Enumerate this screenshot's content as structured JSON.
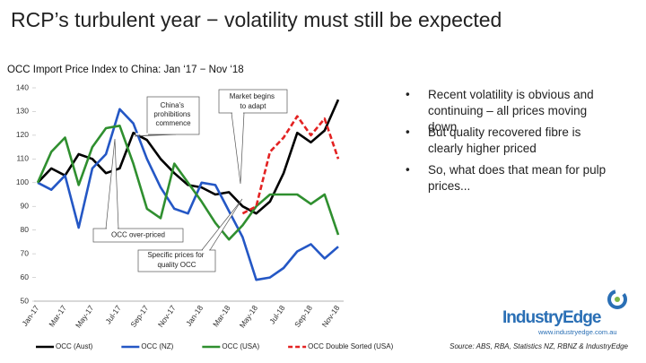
{
  "chart_data": {
    "type": "line",
    "title": "RCP’s turbulent year − volatility must still be expected",
    "subtitle": "OCC Import Price Index to China: Jan ‘17 − Nov ‘18",
    "categories": [
      "Jan-17",
      null,
      "Mar-17",
      null,
      "May-17",
      null,
      "Jul-17",
      null,
      "Sep-17",
      null,
      "Nov-17",
      null,
      "Jan-18",
      null,
      "Mar-18",
      null,
      "May-18",
      null,
      "Jul-18",
      null,
      "Sep-18",
      null,
      "Nov-18"
    ],
    "series": [
      {
        "name": "OCC (Aust)",
        "color": "#000000",
        "dashed": false,
        "values": [
          100,
          106,
          103,
          112,
          110,
          104,
          106,
          121,
          118,
          110,
          104,
          99,
          98,
          95,
          96,
          90,
          87,
          92,
          104,
          121,
          117,
          122,
          135
        ]
      },
      {
        "name": "OCC (NZ)",
        "color": "#2457c5",
        "dashed": false,
        "values": [
          100,
          97,
          103,
          81,
          106,
          112,
          131,
          125,
          110,
          98,
          89,
          87,
          100,
          99,
          88,
          77,
          59,
          60,
          64,
          71,
          74,
          68,
          73
        ]
      },
      {
        "name": "OCC (USA)",
        "color": "#2f8f2f",
        "dashed": false,
        "values": [
          100,
          113,
          119,
          99,
          115,
          123,
          124,
          108,
          89,
          85,
          108,
          100,
          92,
          83,
          76,
          82,
          90,
          95,
          95,
          95,
          91,
          95,
          78
        ]
      },
      {
        "name": "OCC Double Sorted (USA)",
        "color": "#e32222",
        "dashed": true,
        "values": [
          null,
          null,
          null,
          null,
          null,
          null,
          null,
          null,
          null,
          null,
          null,
          null,
          null,
          null,
          null,
          87,
          90,
          113,
          119,
          128,
          120,
          127,
          110
        ]
      }
    ],
    "ylim": [
      50,
      140
    ],
    "yticks": [
      50,
      60,
      70,
      80,
      90,
      100,
      110,
      120,
      130,
      140
    ],
    "grid": false,
    "legend": "bottom",
    "annotations": [
      "China’s prohibitions commence",
      "Market begins to adapt",
      "OCC over-priced",
      "Specific prices for quality OCC"
    ]
  },
  "bullets": [
    "Recent volatility is obvious and continuing – all prices moving down",
    "But quality recovered fibre is clearly higher priced",
    "So, what does that mean for pulp prices..."
  ],
  "logo": {
    "name": "IndustryEdge",
    "url": "www.industryedge.com.au"
  },
  "source": "Source: ABS, RBA, Statistics NZ, RBNZ & IndustryEdge"
}
